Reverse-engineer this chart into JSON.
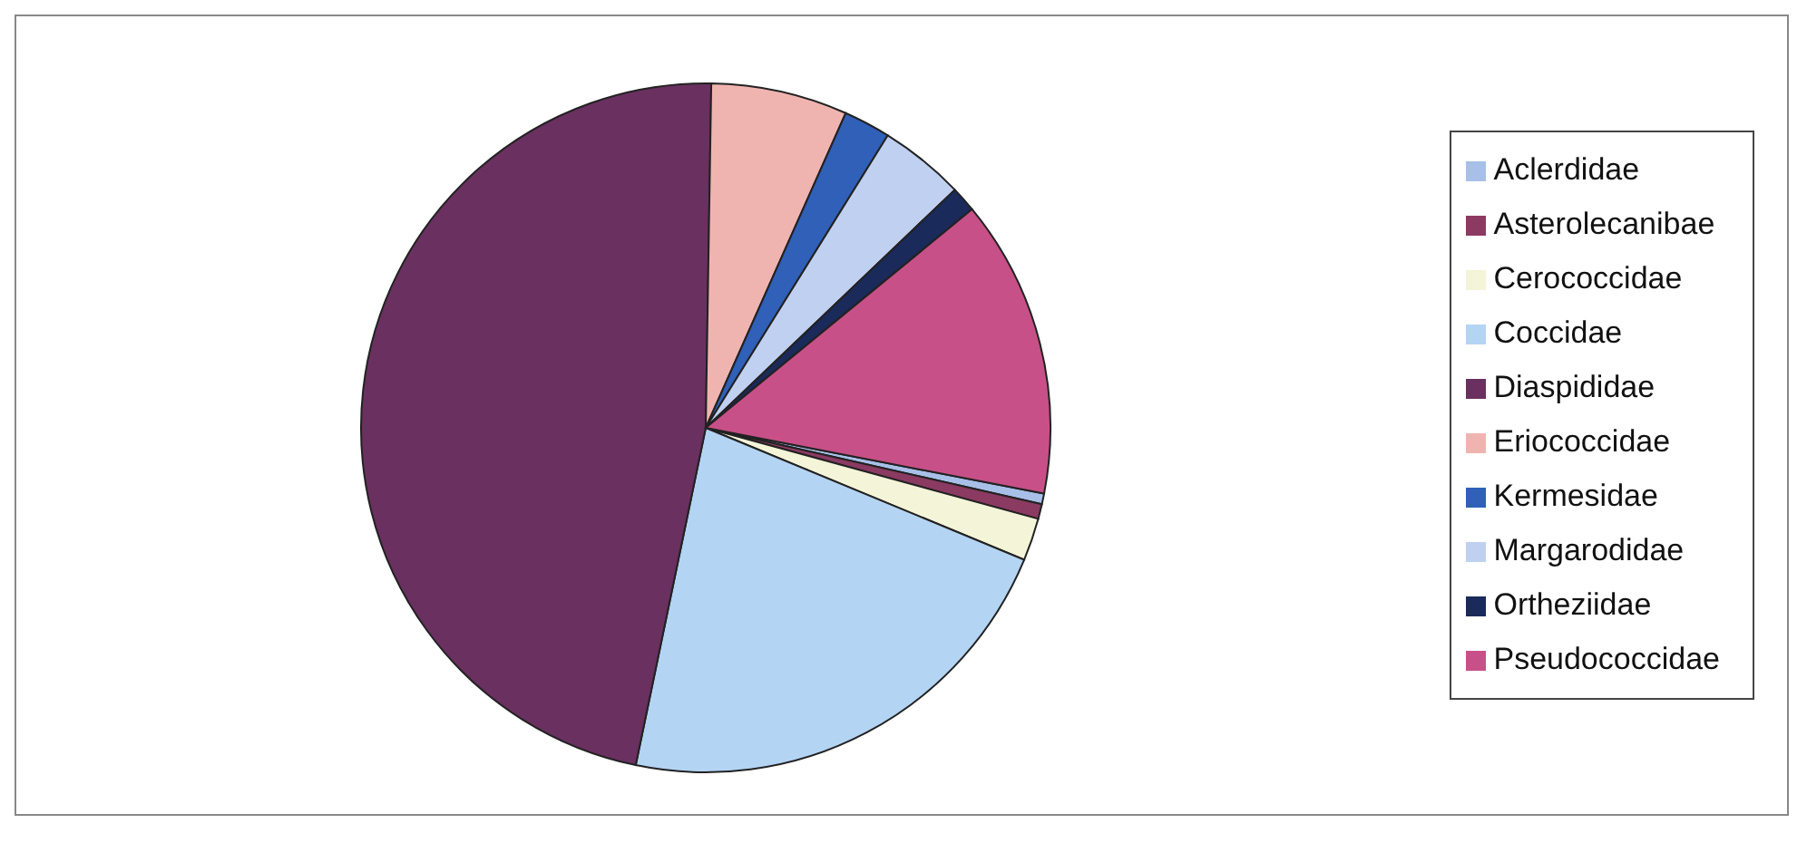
{
  "chart_data": {
    "type": "pie",
    "categories": [
      "Aclerdidae",
      "Asterolecanibae",
      "Cerococcidae",
      "Coccidae",
      "Diaspididae",
      "Eriococcidae",
      "Kermesidae",
      "Margarodidae",
      "Ortheziidae",
      "Pseudococcidae"
    ],
    "values": [
      0.5,
      0.7,
      2,
      22,
      47,
      6.4,
      2.2,
      4,
      1.2,
      14
    ],
    "colors": [
      "#a8c0e8",
      "#8b3a62",
      "#f4f4d8",
      "#b4d4f4",
      "#6a3060",
      "#f0b4b0",
      "#3060b8",
      "#c0d0f0",
      "#1a2a5a",
      "#c85088"
    ],
    "legend": "right"
  }
}
